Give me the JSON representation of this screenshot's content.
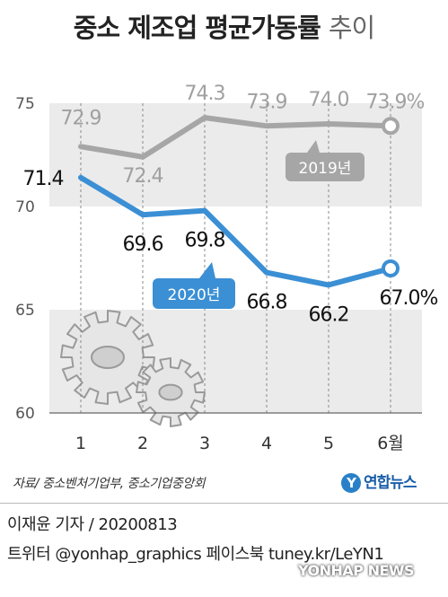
{
  "title": {
    "main": "중소 제조업 평균가동률",
    "suffix": "추이"
  },
  "chart_data": {
    "type": "line",
    "categories": [
      "1",
      "2",
      "3",
      "4",
      "5",
      "6월"
    ],
    "ylim": [
      60,
      75
    ],
    "yticks": [
      "60",
      "65",
      "70",
      "75"
    ],
    "series": [
      {
        "name": "2019년",
        "values": [
          72.9,
          72.4,
          74.3,
          73.9,
          74.0,
          73.9
        ],
        "labels": [
          "72.9",
          "72.4",
          "74.3",
          "73.9",
          "74.0",
          "73.9%"
        ],
        "color": "#a6a6a6"
      },
      {
        "name": "2020년",
        "values": [
          71.4,
          69.6,
          69.8,
          66.8,
          66.2,
          67.0
        ],
        "labels": [
          "71.4",
          "69.6",
          "69.8",
          "66.8",
          "66.2",
          "67.0%"
        ],
        "color": "#3b8fd4"
      }
    ]
  },
  "source": "자료/ 중소벤처기업부, 중소기업중앙회",
  "logo": {
    "mark": "Y",
    "text": "연합뉴스"
  },
  "credit": "이재윤 기자 / 20200813",
  "twitter": "트위터 @yonhap_graphics  페이스북 tuney.kr/LeYN1",
  "watermark": "YONHAP NEWS"
}
